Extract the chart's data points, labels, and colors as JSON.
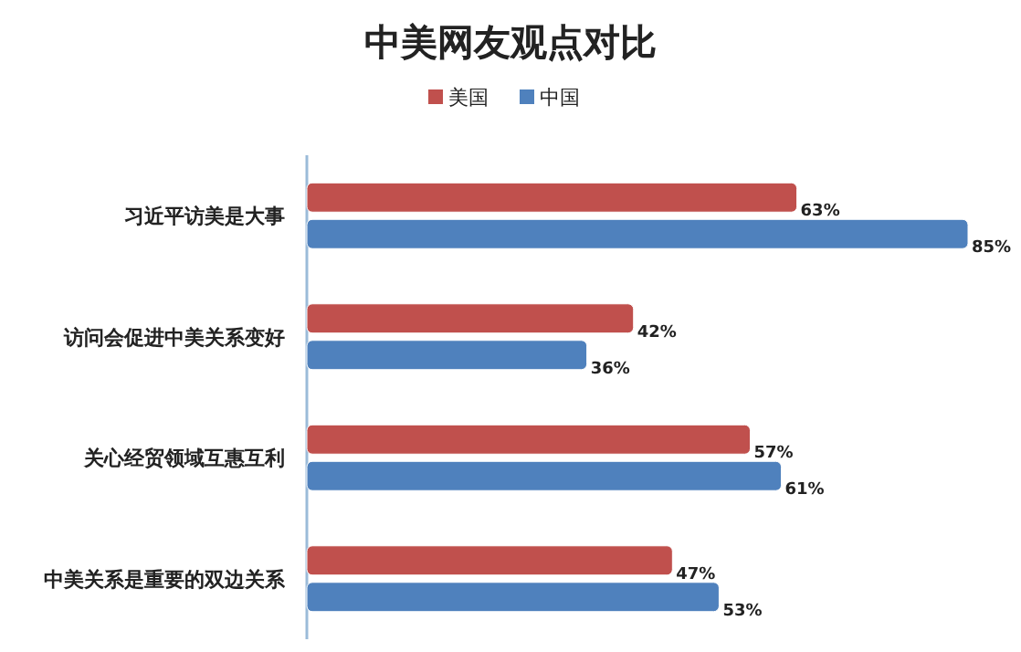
{
  "chart_data": {
    "type": "bar",
    "orientation": "horizontal",
    "title": "中美网友观点对比",
    "categories": [
      "习近平访美是大事",
      "访问会促进中美关系变好",
      "关心经贸领域互惠互利",
      "中美关系是重要的双边关系"
    ],
    "series": [
      {
        "name": "美国",
        "color": "#c0504d",
        "values": [
          63,
          42,
          57,
          47
        ],
        "value_labels": [
          "63%",
          "42%",
          "57%",
          "47%"
        ]
      },
      {
        "name": "中国",
        "color": "#4f81bd",
        "values": [
          85,
          36,
          61,
          53
        ],
        "value_labels": [
          "85%",
          "36%",
          "61%",
          "53%"
        ]
      }
    ],
    "legend": "top"
  }
}
